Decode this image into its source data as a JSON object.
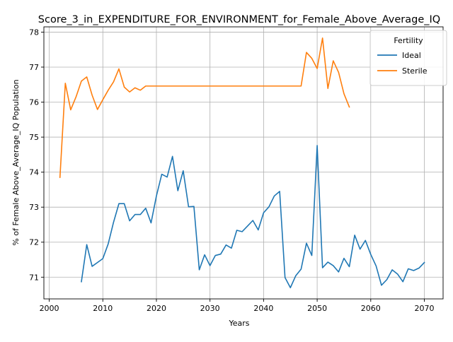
{
  "chart_data": {
    "type": "line",
    "title": "Score_3_in_EXPENDITURE_FOR_ENVIRONMENT_for_Female_Above_Average_IQ",
    "xlabel": "Years",
    "ylabel": "% of Female Above_Average_IQ Population",
    "xlim": [
      1999,
      2073.5
    ],
    "ylim": [
      70.38,
      78.15
    ],
    "xticks": [
      2000,
      2010,
      2020,
      2030,
      2040,
      2050,
      2060,
      2070
    ],
    "yticks": [
      71,
      72,
      73,
      74,
      75,
      76,
      77,
      78
    ],
    "grid": true,
    "legend": {
      "title": "Fertility",
      "placement": "top-right"
    },
    "series": [
      {
        "name": "Ideal",
        "color": "#1f77b4",
        "x": [
          2006,
          2007,
          2008,
          2009,
          2010,
          2011,
          2012,
          2013,
          2014,
          2015,
          2016,
          2017,
          2018,
          2019,
          2020,
          2021,
          2022,
          2023,
          2024,
          2025,
          2026,
          2027,
          2028,
          2029,
          2030,
          2031,
          2032,
          2033,
          2034,
          2035,
          2036,
          2037,
          2038,
          2039,
          2040,
          2041,
          2042,
          2043,
          2044,
          2045,
          2046,
          2047,
          2048,
          2049,
          2050,
          2051,
          2052,
          2053,
          2054,
          2055,
          2056,
          2057,
          2058,
          2059,
          2060,
          2061,
          2062,
          2063,
          2064,
          2065,
          2066,
          2067,
          2068,
          2069,
          2070
        ],
        "values": [
          70.87,
          71.93,
          71.31,
          71.42,
          71.53,
          71.95,
          72.57,
          73.1,
          73.1,
          72.61,
          72.79,
          72.79,
          72.97,
          72.55,
          73.32,
          73.94,
          73.86,
          74.45,
          73.47,
          74.04,
          73.01,
          73.02,
          71.21,
          71.64,
          71.33,
          71.62,
          71.66,
          71.92,
          71.83,
          72.34,
          72.3,
          72.46,
          72.62,
          72.35,
          72.84,
          73.01,
          73.32,
          73.45,
          70.99,
          70.7,
          71.04,
          71.23,
          71.97,
          71.62,
          74.76,
          71.27,
          71.43,
          71.33,
          71.15,
          71.54,
          71.3,
          72.2,
          71.8,
          72.05,
          71.65,
          71.32,
          70.77,
          70.93,
          71.21,
          71.09,
          70.87,
          71.24,
          71.19,
          71.26,
          71.42
        ]
      },
      {
        "name": "Sterile",
        "color": "#ff7f0e",
        "x": [
          2002,
          2003,
          2004,
          2005,
          2006,
          2007,
          2008,
          2009,
          2010,
          2011,
          2012,
          2013,
          2014,
          2015,
          2016,
          2017,
          2018,
          2019,
          2020,
          2021,
          2022,
          2023,
          2024,
          2025,
          2026,
          2027,
          2028,
          2029,
          2030,
          2031,
          2032,
          2033,
          2034,
          2035,
          2036,
          2037,
          2038,
          2039,
          2040,
          2041,
          2042,
          2043,
          2044,
          2045,
          2046,
          2047,
          2048,
          2049,
          2050,
          2051,
          2052,
          2053,
          2054,
          2055,
          2056
        ],
        "values": [
          73.85,
          76.54,
          75.78,
          76.15,
          76.6,
          76.72,
          76.2,
          75.79,
          76.07,
          76.34,
          76.58,
          76.95,
          76.43,
          76.29,
          76.41,
          76.34,
          76.46,
          76.46,
          76.46,
          76.46,
          76.46,
          76.46,
          76.46,
          76.46,
          76.46,
          76.46,
          76.46,
          76.46,
          76.46,
          76.46,
          76.46,
          76.46,
          76.46,
          76.46,
          76.46,
          76.46,
          76.46,
          76.46,
          76.46,
          76.46,
          76.46,
          76.46,
          76.46,
          76.46,
          76.46,
          76.46,
          77.42,
          77.25,
          76.96,
          77.83,
          76.39,
          77.18,
          76.85,
          76.24,
          75.86
        ]
      }
    ]
  }
}
